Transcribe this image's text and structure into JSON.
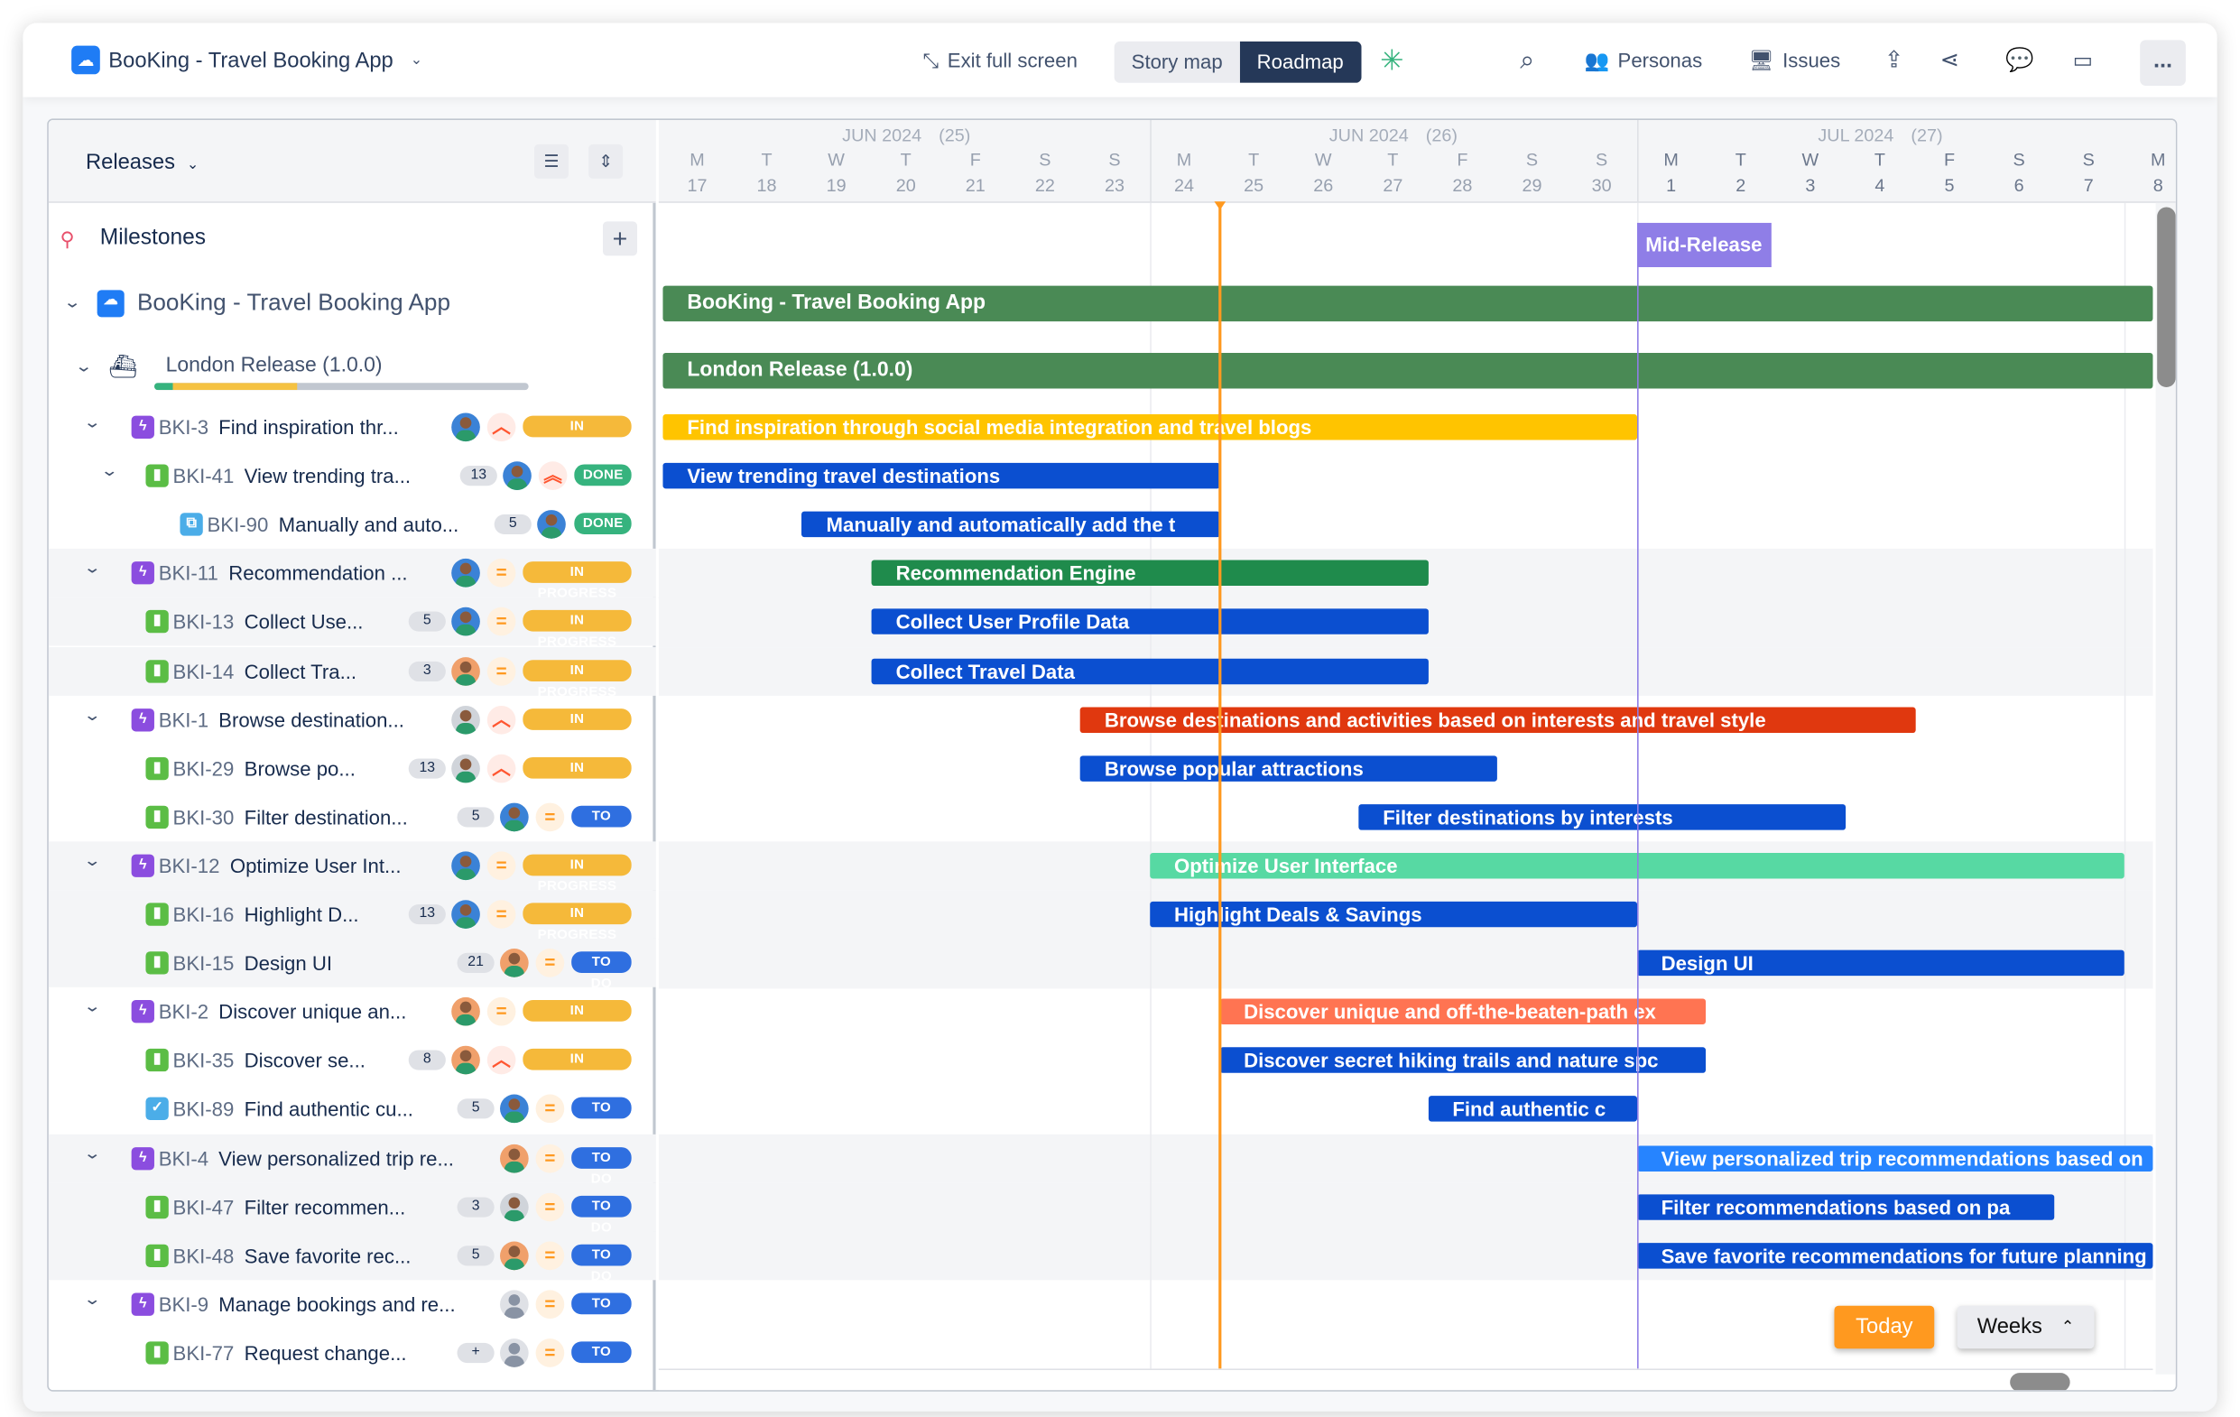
{
  "topbar": {
    "project_title": "BooKing - Travel Booking App",
    "exit_fullscreen": "Exit full screen",
    "view_tabs": [
      "Story map",
      "Roadmap"
    ],
    "active_view": "Roadmap",
    "personas": "Personas",
    "issues": "Issues",
    "more": "..."
  },
  "left_panel": {
    "group_by": "Releases",
    "milestones_label": "Milestones",
    "project_label": "BooKing - Travel Booking App",
    "release_label": "London Release (1.0.0)",
    "release_progress": {
      "done": 0.05,
      "in_progress": 0.33,
      "todo": 0.62
    },
    "rows": [
      {
        "level": 1,
        "id": "BKI-3",
        "title": "Find inspiration thr...",
        "type": "epic",
        "count": "",
        "avatar": "man-blue",
        "priority": "high",
        "status": "IN PROGRESS",
        "band": false
      },
      {
        "level": 2,
        "id": "BKI-41",
        "title": "View trending tra...",
        "type": "story",
        "count": "13",
        "avatar": "man-blue",
        "priority": "highest",
        "status": "DONE",
        "band": false,
        "chevron": true
      },
      {
        "level": 3,
        "id": "BKI-90",
        "title": "Manually and auto...",
        "type": "subtask",
        "count": "5",
        "avatar": "man-blue",
        "priority": "none",
        "status": "DONE",
        "band": false
      },
      {
        "level": 1,
        "id": "BKI-11",
        "title": "Recommendation ...",
        "type": "epic",
        "count": "",
        "avatar": "man-blue",
        "priority": "medium",
        "status": "IN PROGRESS",
        "band": true
      },
      {
        "level": 2,
        "id": "BKI-13",
        "title": "Collect Use...",
        "type": "story",
        "count": "5",
        "avatar": "man-blue",
        "priority": "medium",
        "status": "IN PROGRESS",
        "band": true
      },
      {
        "level": 2,
        "id": "BKI-14",
        "title": "Collect Tra...",
        "type": "story",
        "count": "3",
        "avatar": "man-orange",
        "priority": "medium",
        "status": "IN PROGRESS",
        "band": true
      },
      {
        "level": 1,
        "id": "BKI-1",
        "title": "Browse destination...",
        "type": "epic",
        "count": "",
        "avatar": "man-gray",
        "priority": "high",
        "status": "IN PROGRESS",
        "band": false
      },
      {
        "level": 2,
        "id": "BKI-29",
        "title": "Browse po...",
        "type": "story",
        "count": "13",
        "avatar": "man-gray",
        "priority": "high",
        "status": "IN PROGRESS",
        "band": false
      },
      {
        "level": 2,
        "id": "BKI-30",
        "title": "Filter destination...",
        "type": "story",
        "count": "5",
        "avatar": "man-blue",
        "priority": "medium",
        "status": "TO DO",
        "band": false
      },
      {
        "level": 1,
        "id": "BKI-12",
        "title": "Optimize User Int...",
        "type": "epic",
        "count": "",
        "avatar": "man-blue",
        "priority": "medium",
        "status": "IN PROGRESS",
        "band": true
      },
      {
        "level": 2,
        "id": "BKI-16",
        "title": "Highlight D...",
        "type": "story",
        "count": "13",
        "avatar": "man-blue",
        "priority": "medium",
        "status": "IN PROGRESS",
        "band": true
      },
      {
        "level": 2,
        "id": "BKI-15",
        "title": "Design UI",
        "type": "story",
        "count": "21",
        "avatar": "man-orange",
        "priority": "medium",
        "status": "TO DO",
        "band": true
      },
      {
        "level": 1,
        "id": "BKI-2",
        "title": "Discover unique an...",
        "type": "epic",
        "count": "",
        "avatar": "man-orange",
        "priority": "medium",
        "status": "IN PROGRESS",
        "band": false
      },
      {
        "level": 2,
        "id": "BKI-35",
        "title": "Discover se...",
        "type": "story",
        "count": "8",
        "avatar": "man-orange",
        "priority": "high",
        "status": "IN PROGRESS",
        "band": false
      },
      {
        "level": 2,
        "id": "BKI-89",
        "title": "Find authentic cu...",
        "type": "task",
        "count": "5",
        "avatar": "man-blue",
        "priority": "medium",
        "status": "TO DO",
        "band": false
      },
      {
        "level": 1,
        "id": "BKI-4",
        "title": "View personalized trip re...",
        "type": "epic",
        "count": "",
        "avatar": "man-orange",
        "priority": "medium",
        "status": "TO DO",
        "band": true
      },
      {
        "level": 2,
        "id": "BKI-47",
        "title": "Filter recommen...",
        "type": "story",
        "count": "3",
        "avatar": "man-gray",
        "priority": "medium",
        "status": "TO DO",
        "band": true
      },
      {
        "level": 2,
        "id": "BKI-48",
        "title": "Save favorite rec...",
        "type": "story",
        "count": "5",
        "avatar": "man-orange",
        "priority": "medium",
        "status": "TO DO",
        "band": true
      },
      {
        "level": 1,
        "id": "BKI-9",
        "title": "Manage bookings and re...",
        "type": "epic",
        "count": "",
        "avatar": "unassigned",
        "priority": "medium",
        "status": "TO DO",
        "band": false
      },
      {
        "level": 2,
        "id": "BKI-77",
        "title": "Request change...",
        "type": "story",
        "count": "+",
        "avatar": "unassigned",
        "priority": "medium",
        "status": "TO DO",
        "band": false
      }
    ]
  },
  "timeline": {
    "weeks": [
      {
        "label": "JUN 2024",
        "num": "(25)"
      },
      {
        "label": "JUN 2024",
        "num": "(26)"
      },
      {
        "label": "JUL 2024",
        "num": "(27)"
      }
    ],
    "days": [
      {
        "d": "M",
        "n": "17"
      },
      {
        "d": "T",
        "n": "18"
      },
      {
        "d": "W",
        "n": "19"
      },
      {
        "d": "T",
        "n": "20"
      },
      {
        "d": "F",
        "n": "21"
      },
      {
        "d": "S",
        "n": "22"
      },
      {
        "d": "S",
        "n": "23"
      },
      {
        "d": "M",
        "n": "24"
      },
      {
        "d": "T",
        "n": "25"
      },
      {
        "d": "W",
        "n": "26"
      },
      {
        "d": "T",
        "n": "27"
      },
      {
        "d": "F",
        "n": "28"
      },
      {
        "d": "S",
        "n": "29"
      },
      {
        "d": "S",
        "n": "30"
      },
      {
        "d": "M",
        "n": "1"
      },
      {
        "d": "T",
        "n": "2"
      },
      {
        "d": "W",
        "n": "3"
      },
      {
        "d": "T",
        "n": "4"
      },
      {
        "d": "F",
        "n": "5"
      },
      {
        "d": "S",
        "n": "6"
      },
      {
        "d": "S",
        "n": "7"
      },
      {
        "d": "M",
        "n": "8"
      }
    ],
    "first_day": "2024-06-17",
    "today": "2024-06-25",
    "milestone": {
      "label": "Mid-Release",
      "date": "2024-07-01",
      "color": "#8f7ee7"
    },
    "project_bar": {
      "label": "BooKing - Travel Booking App",
      "start": "2024-06-17",
      "end": "2024-07-10",
      "color": "#4a8a55"
    },
    "release_bar": {
      "label": "London Release (1.0.0)",
      "start": "2024-06-17",
      "end": "2024-07-10",
      "color": "#4a8a55"
    },
    "bars": [
      {
        "label": "Find inspiration through social media integration and travel blogs",
        "start": "2024-06-17",
        "end": "2024-07-01",
        "color": "#ffc400"
      },
      {
        "label": "View trending travel destinations",
        "start": "2024-06-17",
        "end": "2024-06-25",
        "color": "#0b4fd0"
      },
      {
        "label": "Manually and automatically add the t",
        "start": "2024-06-19",
        "end": "2024-06-25",
        "color": "#0b4fd0"
      },
      {
        "label": "Recommendation Engine",
        "start": "2024-06-20",
        "end": "2024-06-28",
        "color": "#1f8b4c"
      },
      {
        "label": "Collect User Profile Data",
        "start": "2024-06-20",
        "end": "2024-06-28",
        "color": "#0b4fd0"
      },
      {
        "label": "Collect Travel Data",
        "start": "2024-06-20",
        "end": "2024-06-28",
        "color": "#0b4fd0"
      },
      {
        "label": "Browse destinations and activities based on interests and travel style",
        "start": "2024-06-23",
        "end": "2024-07-05",
        "color": "#e0380f"
      },
      {
        "label": "Browse popular attractions",
        "start": "2024-06-23",
        "end": "2024-06-29",
        "color": "#0b4fd0"
      },
      {
        "label": "Filter destinations by interests",
        "start": "2024-06-27",
        "end": "2024-07-04",
        "color": "#0b4fd0"
      },
      {
        "label": "Optimize User Interface",
        "start": "2024-06-24",
        "end": "2024-07-08",
        "color": "#57d9a3"
      },
      {
        "label": "Highlight Deals & Savings",
        "start": "2024-06-24",
        "end": "2024-07-01",
        "color": "#0b4fd0"
      },
      {
        "label": "Design UI",
        "start": "2024-07-01",
        "end": "2024-07-08",
        "color": "#0b4fd0"
      },
      {
        "label": "Discover unique and off-the-beaten-path ex",
        "start": "2024-06-25",
        "end": "2024-07-02",
        "color": "#ff7452"
      },
      {
        "label": "Discover secret hiking trails and nature spc",
        "start": "2024-06-25",
        "end": "2024-07-02",
        "color": "#0b4fd0"
      },
      {
        "label": "Find authentic c",
        "start": "2024-06-28",
        "end": "2024-07-01",
        "color": "#0b4fd0"
      },
      {
        "label": "View personalized trip recommendations based on",
        "start": "2024-07-01",
        "end": "2024-07-10",
        "color": "#2684ff"
      },
      {
        "label": "Filter recommendations based on pa",
        "start": "2024-07-01",
        "end": "2024-07-07",
        "color": "#0b4fd0"
      },
      {
        "label": "Save favorite recommendations for future planning",
        "start": "2024-07-01",
        "end": "2024-07-10",
        "color": "#0b4fd0"
      },
      null,
      null
    ],
    "today_button": "Today",
    "scale_select": "Weeks"
  },
  "colors": {
    "in_progress": "#f5b93a",
    "done": "#36b37e",
    "todo": "#2f6fe0",
    "epic": "#8b4ddf",
    "story": "#5bbd45",
    "task": "#4bade8",
    "today_line": "#ff991f",
    "navy": "#253858"
  }
}
